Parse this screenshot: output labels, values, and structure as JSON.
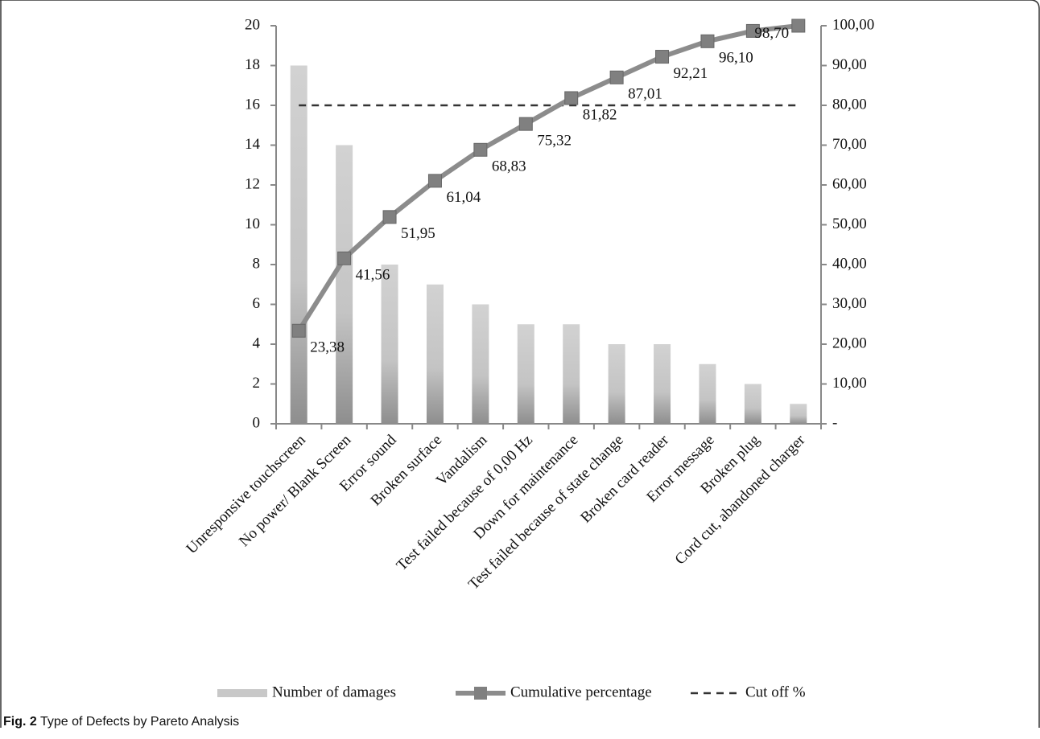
{
  "chart_data": {
    "type": "pareto",
    "categories": [
      "Unresponsive touchscreen",
      "No power/ Blank Screen",
      "Error sound",
      "Broken surface",
      "Vandalism",
      "Test failed  because of  0,00 Hz",
      "Down for maintenance",
      "Test failed  because of  state change",
      "Broken card reader",
      "Error message",
      "Broken plug",
      "Cord cut, abandoned charger"
    ],
    "series": [
      {
        "name": "Number of damages",
        "type": "bar",
        "color": "#c4c4c4",
        "values": [
          18,
          14,
          8,
          7,
          6,
          5,
          5,
          4,
          4,
          3,
          2,
          1
        ]
      },
      {
        "name": "Cumulative percentage",
        "type": "line",
        "axis": "y2",
        "color": "#8c8c8c",
        "values": [
          23.38,
          41.56,
          51.95,
          61.04,
          68.83,
          75.32,
          81.82,
          87.01,
          92.21,
          96.1,
          98.7,
          100
        ],
        "value_labels": [
          "23,38",
          "41,56",
          "51,95",
          "61,04",
          "68,83",
          "75,32",
          "81,82",
          "87,01",
          "92,21",
          "96,10",
          "98,70",
          null
        ]
      },
      {
        "name": "Cut off %",
        "type": "hline",
        "axis": "y2",
        "color": "#333333",
        "value": 80
      }
    ],
    "ylim": [
      0,
      20
    ],
    "yticks": [
      0,
      2,
      4,
      6,
      8,
      10,
      12,
      14,
      16,
      18,
      20
    ],
    "y2lim": [
      0,
      100
    ],
    "y2ticks": [
      {
        "value": 0,
        "label": "-"
      },
      {
        "value": 10,
        "label": "10,00"
      },
      {
        "value": 20,
        "label": "20,00"
      },
      {
        "value": 30,
        "label": "30,00"
      },
      {
        "value": 40,
        "label": "40,00"
      },
      {
        "value": 50,
        "label": "50,00"
      },
      {
        "value": 60,
        "label": "60,00"
      },
      {
        "value": 70,
        "label": "70,00"
      },
      {
        "value": 80,
        "label": "80,00"
      },
      {
        "value": 90,
        "label": "90,00"
      },
      {
        "value": 100,
        "label": "100,00"
      }
    ],
    "caption_label": "Fig. 2",
    "caption": "Type of Defects by Pareto Analysis"
  }
}
